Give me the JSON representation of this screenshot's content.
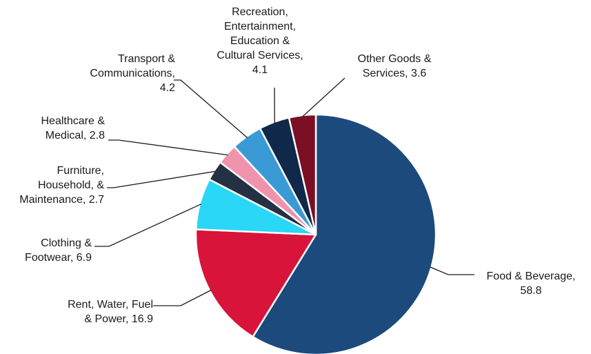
{
  "chart_data": {
    "type": "pie",
    "title": "",
    "slices": [
      {
        "label_lines": [
          "Food & Beverage,",
          "58.8"
        ],
        "value": 58.8,
        "color": "#1c4a7d"
      },
      {
        "label_lines": [
          "Rent, Water, Fuel",
          "& Power, 16.9"
        ],
        "value": 16.9,
        "color": "#d8143a"
      },
      {
        "label_lines": [
          "Clothing &",
          "Footwear, 6.9"
        ],
        "value": 6.9,
        "color": "#2ad7f7"
      },
      {
        "label_lines": [
          "Furniture,",
          "Household, &",
          "Maintenance, 2.7"
        ],
        "value": 2.7,
        "color": "#243044"
      },
      {
        "label_lines": [
          "Healthcare &",
          "Medical, 2.8"
        ],
        "value": 2.8,
        "color": "#ef93ad"
      },
      {
        "label_lines": [
          "Transport &",
          "Communications,",
          "4.2"
        ],
        "value": 4.2,
        "color": "#3a9ad6"
      },
      {
        "label_lines": [
          "Recreation,",
          "Entertainment,",
          "Education &",
          "Cultural Services,",
          "4.1"
        ],
        "value": 4.1,
        "color": "#10284a"
      },
      {
        "label_lines": [
          "Other Goods &",
          "Services, 3.6"
        ],
        "value": 3.6,
        "color": "#7a0f26"
      }
    ]
  }
}
